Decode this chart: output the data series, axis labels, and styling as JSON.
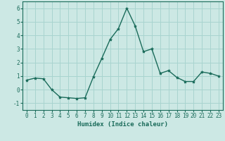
{
  "x": [
    0,
    1,
    2,
    3,
    4,
    5,
    6,
    7,
    8,
    9,
    10,
    11,
    12,
    13,
    14,
    15,
    16,
    17,
    18,
    19,
    20,
    21,
    22,
    23
  ],
  "y": [
    0.7,
    0.85,
    0.8,
    0.0,
    -0.55,
    -0.6,
    -0.65,
    -0.6,
    0.95,
    2.3,
    3.7,
    4.5,
    6.0,
    4.7,
    2.8,
    3.0,
    1.2,
    1.4,
    0.9,
    0.6,
    0.6,
    1.3,
    1.2,
    1.0
  ],
  "line_color": "#1a6b5a",
  "marker": "*",
  "marker_size": 3,
  "bg_color": "#cce8e4",
  "grid_color": "#a8d4cf",
  "xlabel": "Humidex (Indice chaleur)",
  "ylim": [
    -1.5,
    6.5
  ],
  "xlim": [
    -0.5,
    23.5
  ],
  "yticks": [
    -1,
    0,
    1,
    2,
    3,
    4,
    5,
    6
  ],
  "xticks": [
    0,
    1,
    2,
    3,
    4,
    5,
    6,
    7,
    8,
    9,
    10,
    11,
    12,
    13,
    14,
    15,
    16,
    17,
    18,
    19,
    20,
    21,
    22,
    23
  ],
  "label_fontsize": 6.5,
  "tick_fontsize": 5.5
}
